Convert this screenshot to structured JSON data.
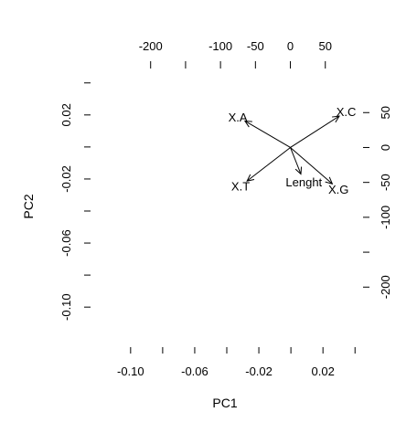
{
  "chart_data": {
    "type": "biplot",
    "xlabel": "PC1",
    "ylabel": "PC2",
    "bottom_axis": {
      "range": [
        -0.125,
        0.045
      ],
      "ticks": [
        -0.1,
        -0.08,
        -0.06,
        -0.04,
        -0.02,
        0.0,
        0.02,
        0.04
      ],
      "tick_labels": [
        "-0.10",
        "",
        "-0.06",
        "",
        "-0.02",
        "",
        "0.02",
        ""
      ]
    },
    "left_axis": {
      "range": [
        -0.125,
        0.045
      ],
      "ticks": [
        0.04,
        0.02,
        0.0,
        -0.02,
        -0.04,
        -0.06,
        -0.08,
        -0.1
      ],
      "tick_labels": [
        "",
        "0.02",
        "",
        "-0.02",
        "",
        "-0.06",
        "",
        "-0.10"
      ]
    },
    "top_axis": {
      "range": [
        -286,
        104
      ],
      "ticks": [
        -200,
        -150,
        -100,
        -50,
        0,
        50
      ],
      "tick_labels": [
        "-200",
        "",
        "-100",
        "-50",
        "0",
        "50"
      ]
    },
    "right_axis": {
      "range": [
        -286,
        104
      ],
      "ticks": [
        50,
        0,
        -50,
        -100,
        -150,
        -200
      ],
      "tick_labels": [
        "50",
        "0",
        "-50",
        "-100",
        "",
        "-200"
      ]
    },
    "loadings": [
      {
        "name": "X.A",
        "x": -65,
        "y": 38
      },
      {
        "name": "X.C",
        "x": 70,
        "y": 45
      },
      {
        "name": "X.T",
        "x": -62,
        "y": -48
      },
      {
        "name": "X.G",
        "x": 60,
        "y": -52
      },
      {
        "name": "Lenght",
        "x": 15,
        "y": -38
      }
    ]
  }
}
